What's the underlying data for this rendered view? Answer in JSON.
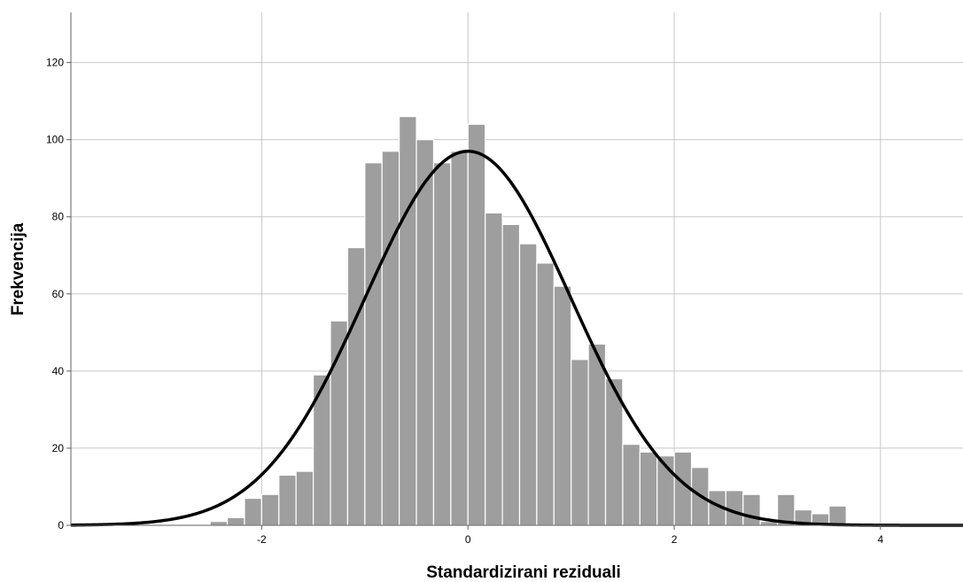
{
  "chart_data": {
    "type": "bar",
    "title": "",
    "xlabel": "Standardizirani reziduali",
    "ylabel": "Frekvencija",
    "xlim": [
      -3.85,
      4.8
    ],
    "ylim": [
      0,
      133
    ],
    "grid": true,
    "xticks": [
      -2,
      0,
      2,
      4
    ],
    "xtick_labels": [
      "-2",
      "0",
      "2",
      "4"
    ],
    "yticks": [
      0,
      20,
      40,
      60,
      80,
      100,
      120
    ],
    "ytick_labels": [
      "0",
      "20",
      "40",
      "60",
      "80",
      "100",
      "120"
    ],
    "bin_start": -2.5,
    "bin_width": 0.1667,
    "values": [
      1,
      2,
      7,
      8,
      13,
      14,
      39,
      53,
      72,
      94,
      97,
      106,
      100,
      94,
      97,
      104,
      81,
      78,
      73,
      68,
      62,
      43,
      47,
      38,
      21,
      19,
      18,
      19,
      15,
      9,
      9,
      8,
      1,
      8,
      4,
      3,
      5
    ],
    "normal_curve": {
      "mean": 0,
      "sd": 1,
      "peak": 97
    },
    "colors": {
      "bar_fill": "#9e9e9e",
      "bar_edge": "#ffffff",
      "grid": "#c8c8c8",
      "curve": "#000000",
      "axis": "#606060"
    }
  }
}
